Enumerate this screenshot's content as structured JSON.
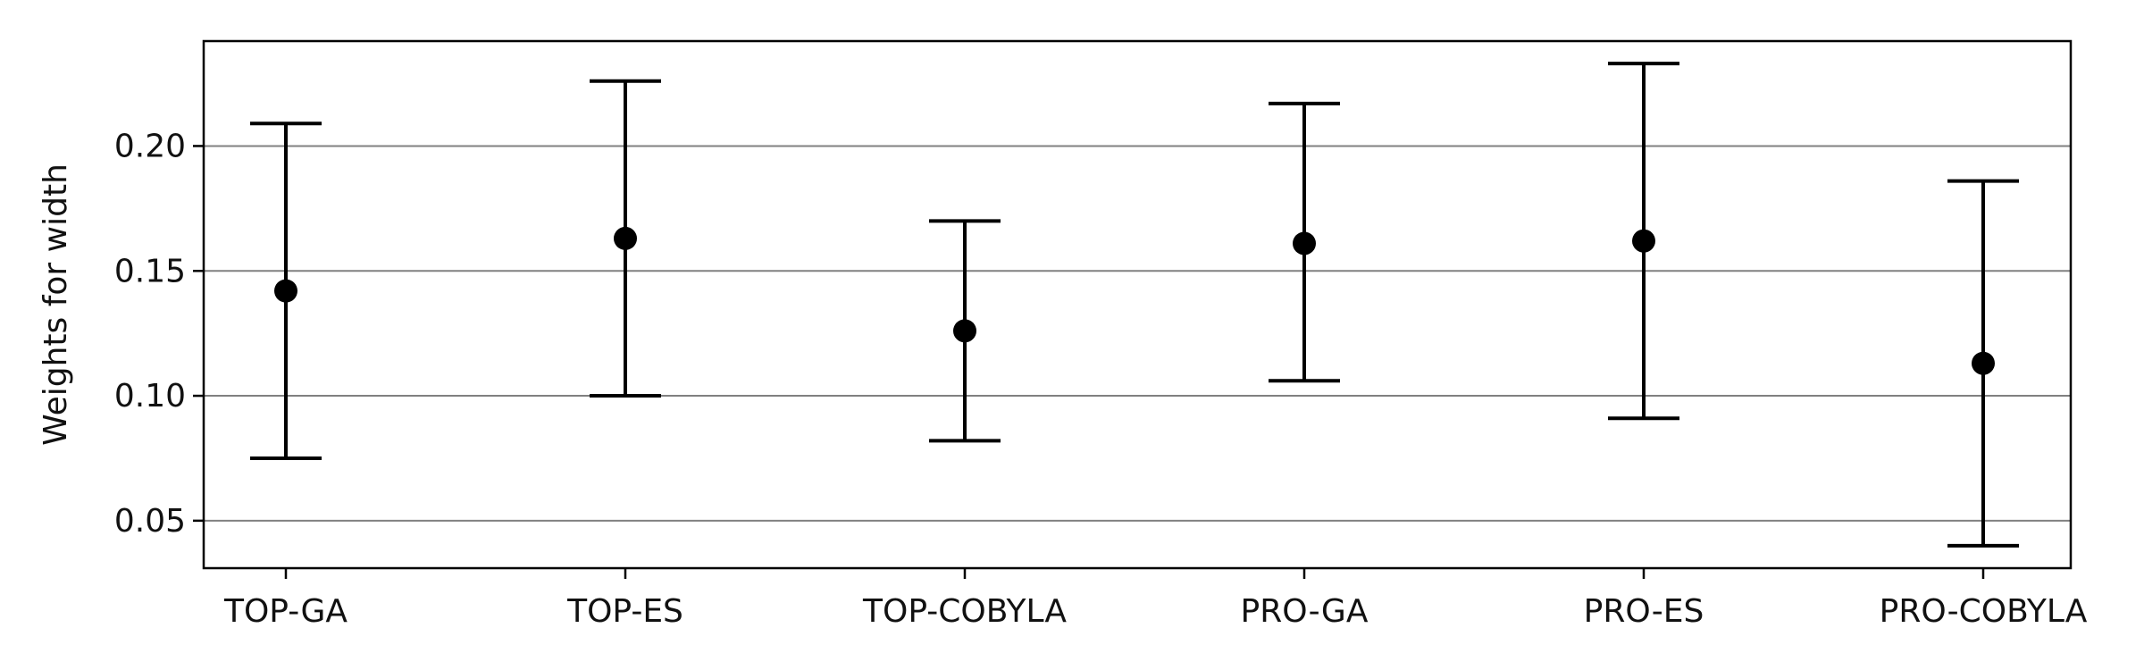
{
  "chart_data": {
    "type": "scatter",
    "subtype": "error-bar",
    "title": "",
    "xlabel": "",
    "ylabel": "Weights for width",
    "categories": [
      "TOP-GA",
      "TOP-ES",
      "TOP-COBYLA",
      "PRO-GA",
      "PRO-ES",
      "PRO-COBYLA"
    ],
    "values": [
      0.142,
      0.163,
      0.126,
      0.161,
      0.162,
      0.113
    ],
    "lower": [
      0.075,
      0.1,
      0.082,
      0.106,
      0.091,
      0.04
    ],
    "upper": [
      0.209,
      0.226,
      0.17,
      0.217,
      0.233,
      0.186
    ],
    "ylim": [
      0.031,
      0.242
    ],
    "yticks": [
      0.05,
      0.1,
      0.15,
      0.2
    ],
    "ytick_labels": [
      "0.05",
      "0.10",
      "0.15",
      "0.20"
    ],
    "grid": "horizontal",
    "legend": "none",
    "colors": {
      "marker": "#000000",
      "grid": "#808080",
      "axis": "#000000"
    }
  }
}
